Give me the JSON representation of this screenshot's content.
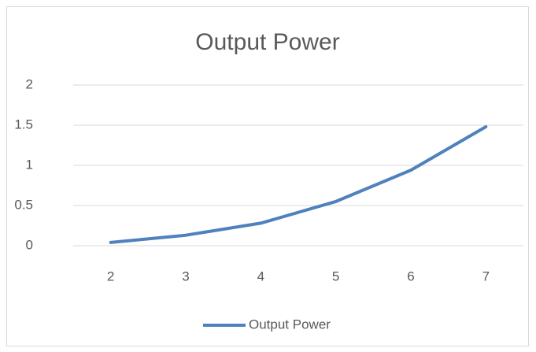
{
  "chart_data": {
    "type": "line",
    "title": "Output Power",
    "categories": [
      "2",
      "3",
      "4",
      "5",
      "6",
      "7"
    ],
    "series": [
      {
        "name": "Output Power",
        "color": "#4f81bd",
        "values": [
          0.04,
          0.13,
          0.28,
          0.55,
          0.94,
          1.48
        ]
      }
    ],
    "ylim": [
      0,
      2
    ],
    "yticks": [
      0,
      0.5,
      1,
      1.5,
      2
    ],
    "grid": true,
    "legend": "bottom"
  }
}
